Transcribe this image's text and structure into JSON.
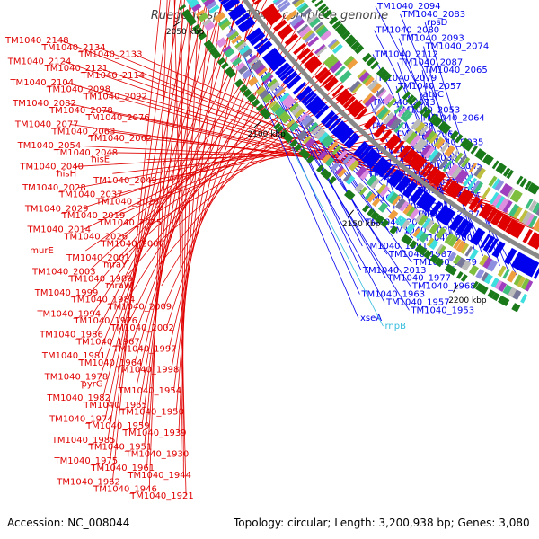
{
  "title": "Ruegeria sp. TM1040, complete genome",
  "accession": "Accession: NC_008044",
  "summary": "Topology: circular; Length: 3,200,938 bp; Genes: 3,080",
  "colors": {
    "forward_strand": "#e00000",
    "reverse_strand": "#0000ee",
    "rna_feature": "#33bbdd",
    "backbone": "#888888",
    "tick_mark": "#1a7a1a"
  },
  "scale_ticks": [
    "2200 kbp",
    "2150 kbp",
    "2100 kbp",
    "2050 kbp",
    "2000 kbp"
  ],
  "left_labels": [
    "TM1040_2148",
    "TM1040_2134",
    "TM1040_2133",
    "TM1040_2124",
    "TM1040_2121",
    "TM1040_2114",
    "TM1040_2104",
    "TM1040_2098",
    "TM1040_2092",
    "TM1040_2082",
    "TM1040_2078",
    "TM1040_2076",
    "TM1040_2077",
    "TM1040_2063",
    "TM1040_2062",
    "TM1040_2054",
    "TM1040_2048",
    "hisE",
    "TM1040_2040",
    "hisH",
    "TM1040_2049",
    "TM1040_2028",
    "TM1040_2037",
    "TM1040_2023",
    "TM1040_2029",
    "TM1040_2019",
    "TM1040_2025",
    "TM1040_2014",
    "TM1040_2026",
    "TM1040_2006",
    "murE",
    "TM1040_2001",
    "mraY",
    "TM1040_2003",
    "TM1040_1989",
    "mraW",
    "TM1040_1999",
    "TM1040_1984",
    "TM1040_2009",
    "TM1040_1994",
    "TM1040_1976",
    "TM1040_2002",
    "TM1040_1986",
    "TM1040_1967",
    "TM1040_1997",
    "TM1040_1981",
    "TM1040_1964",
    "TM1040_1998",
    "TM1040_1978",
    "pyrG",
    "TM1040_1954",
    "TM1040_1982",
    "TM1040_1965",
    "TM1040_1950",
    "TM1040_1974",
    "TM1040_1959",
    "TM1040_1939",
    "TM1040_1985",
    "TM1040_1951",
    "TM1040_1930",
    "TM1040_1975",
    "TM1040_1961",
    "TM1040_1944",
    "TM1040_1962",
    "TM1040_1946",
    "TM1040_1921"
  ],
  "right_labels": [
    "TM1040_2094",
    "TM1040_2083",
    "rpsD",
    "TM1040_2080",
    "TM1040_2093",
    "TM1040_2074",
    "TM1040_2112",
    "TM1040_2087",
    "TM1040_2065",
    "TM1040_2079",
    "TM1040_2057",
    "atpC",
    "TM1040_2073",
    "TM1040_2053",
    "TM1040_2064",
    "TM1040_2038",
    "TM1040_2061",
    "TM1040_2035",
    "TM1040_2055",
    "TM1040_2030",
    "TM1040_2045",
    "TM1040_2024",
    "TM1040_2043",
    "TM1040_2022",
    "TM1040_2032",
    "TM1040_2010",
    "TM1040_2027",
    "TM1040_2005",
    "TM1040_2021",
    "TM1040_2000",
    "TM1040_1991",
    "TM1040_1987",
    "TM1040_1979",
    "TM1040_2013",
    "TM1040_1977",
    "TM1040_1968",
    "TM1040_1963",
    "TM1040_1957",
    "TM1040_1953",
    "xseA",
    "rnpB"
  ]
}
